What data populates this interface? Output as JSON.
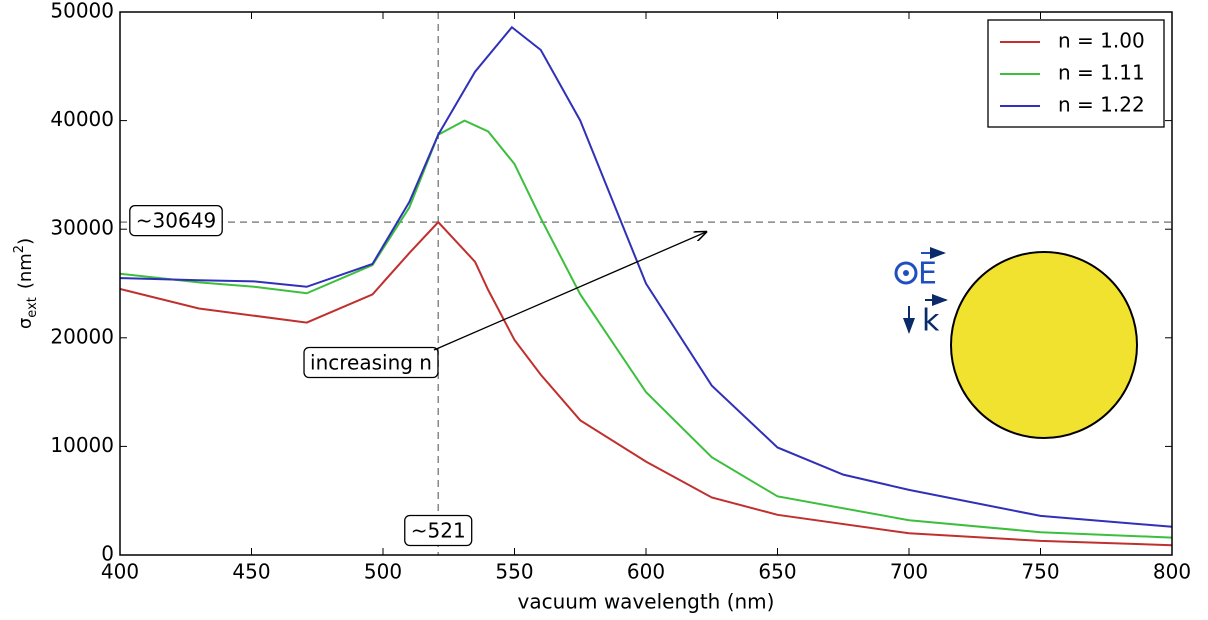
{
  "chart_data": {
    "type": "line",
    "xlabel": "vacuum wavelength (nm)",
    "ylabel": {
      "symbol": "σ",
      "subscript": "ext",
      "unit": "(nm",
      "superscript": "2",
      "close": ")"
    },
    "xlim": [
      400,
      800
    ],
    "ylim": [
      0,
      50000
    ],
    "xticks": [
      400,
      450,
      500,
      550,
      600,
      650,
      700,
      750,
      800
    ],
    "yticks": [
      0,
      10000,
      20000,
      30000,
      40000,
      50000
    ],
    "legend": "upper right",
    "series": [
      {
        "name": "n = 1.00",
        "color": "#c0302e",
        "x": [
          400,
          430,
          471,
          496,
          510,
          521,
          535,
          540,
          550,
          560,
          575,
          600,
          625,
          650,
          700,
          750,
          800
        ],
        "values": [
          24500,
          22700,
          21400,
          24000,
          27800,
          30649,
          27000,
          24400,
          19800,
          16600,
          12400,
          8600,
          5300,
          3700,
          2000,
          1300,
          900
        ]
      },
      {
        "name": "n = 1.11",
        "color": "#3cbf3c",
        "x": [
          400,
          430,
          451,
          471,
          496,
          510,
          521,
          531,
          540,
          550,
          560,
          575,
          600,
          625,
          650,
          700,
          750,
          800
        ],
        "values": [
          25900,
          25100,
          24700,
          24100,
          26700,
          32000,
          38700,
          40000,
          39000,
          36000,
          31000,
          24000,
          15000,
          9000,
          5400,
          3200,
          2100,
          1600
        ]
      },
      {
        "name": "n = 1.22",
        "color": "#3030b8",
        "x": [
          400,
          430,
          451,
          471,
          496,
          510,
          521,
          535,
          549,
          560,
          575,
          590,
          600,
          625,
          650,
          675,
          700,
          750,
          800
        ],
        "values": [
          25500,
          25300,
          25200,
          24700,
          26800,
          32500,
          38700,
          44500,
          48600,
          46500,
          40000,
          31000,
          25000,
          15600,
          9900,
          7400,
          6000,
          3600,
          2600
        ]
      }
    ],
    "hline": {
      "value": 30649,
      "label": "~30649"
    },
    "vline": {
      "value": 521,
      "label": "~521"
    },
    "annotation": "increasing n",
    "field_label": "E",
    "wave_label": "k"
  }
}
